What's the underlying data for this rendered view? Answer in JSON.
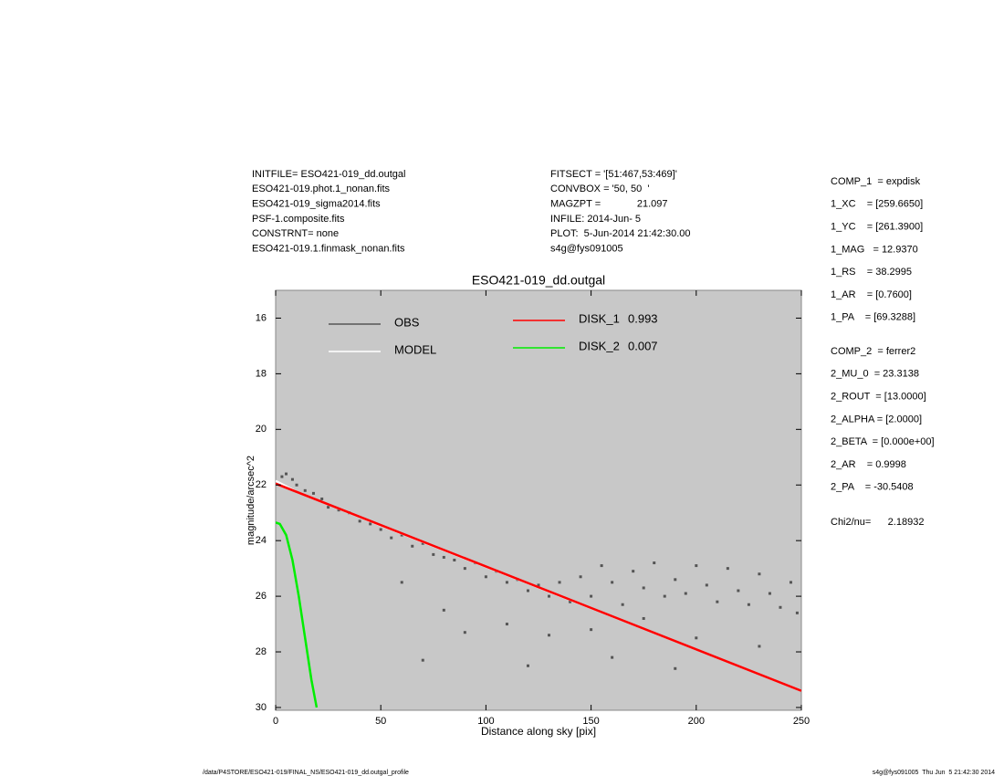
{
  "header": {
    "left": [
      "INITFILE= ESO421-019_dd.outgal",
      "ESO421-019.phot.1_nonan.fits",
      "ESO421-019_sigma2014.fits",
      "PSF-1.composite.fits",
      "CONSTRNT= none",
      "ESO421-019.1.finmask_nonan.fits"
    ],
    "middle": [
      "FITSECT = '[51:467,53:469]'",
      "CONVBOX = '50, 50  '",
      "MAGZPT =             21.097",
      "INFILE: 2014-Jun- 5",
      "PLOT:  5-Jun-2014 21:42:30.00",
      "s4g@fys091005"
    ],
    "components": [
      [
        "COMP_1  = expdisk",
        "1_XC    = [259.6650]",
        "1_YC    = [261.3900]",
        "1_MAG   = 12.9370",
        "1_RS    = 38.2995",
        "1_AR    = [0.7600]",
        "1_PA    = [69.3288]"
      ],
      [
        "COMP_2  = ferrer2",
        "2_MU_0  = 23.3138",
        "2_ROUT  = [13.0000]",
        "2_ALPHA = [2.0000]",
        "2_BETA  = [0.000e+00]",
        "2_AR    = 0.9998",
        "2_PA    = -30.5408"
      ]
    ],
    "chi": "Chi2/nu=      2.18932"
  },
  "footer": {
    "left": "/data/P4STORE/ESO421-019/FINAL_NS/ESO421-019_dd.outgal_profile",
    "right": "s4g@fys091005  Thu Jun  5 21:42:30 2014"
  },
  "chart_data": {
    "type": "scatter",
    "title": "ESO421-019_dd.outgal",
    "x_label": "Distance along sky [pix]",
    "y_label": "magnitude/arcsec^2",
    "xlim": [
      0,
      250
    ],
    "ylim": [
      15,
      30.1
    ],
    "y_inverted": true,
    "xticks": [
      0,
      50,
      100,
      150,
      200,
      250
    ],
    "yticks": [
      16,
      18,
      20,
      22,
      24,
      26,
      28,
      30
    ],
    "background": "#c8c8c8",
    "series": [
      {
        "name": "OBS",
        "type": "scatter",
        "color": "#555555",
        "x": [
          3,
          5,
          8,
          10,
          14,
          18,
          22,
          25,
          30,
          35,
          40,
          45,
          50,
          55,
          60,
          65,
          70,
          75,
          80,
          85,
          90,
          95,
          100,
          105,
          110,
          115,
          120,
          125,
          130,
          135,
          140,
          145,
          150,
          155,
          160,
          165,
          170,
          175,
          180,
          185,
          190,
          195,
          200,
          205,
          210,
          215,
          220,
          225,
          230,
          235,
          240,
          245,
          248,
          60,
          80,
          90,
          70,
          110,
          130,
          120,
          150,
          160,
          175,
          200,
          190,
          230
        ],
        "values": [
          21.7,
          21.6,
          21.8,
          22.0,
          22.2,
          22.3,
          22.5,
          22.8,
          22.9,
          23.0,
          23.3,
          23.4,
          23.6,
          23.9,
          23.8,
          24.2,
          24.1,
          24.5,
          24.6,
          24.7,
          25.0,
          24.8,
          25.3,
          25.1,
          25.5,
          25.4,
          25.8,
          25.6,
          26.0,
          25.5,
          26.2,
          25.3,
          26.0,
          24.9,
          25.5,
          26.3,
          25.1,
          25.7,
          24.8,
          26.0,
          25.4,
          25.9,
          24.9,
          25.6,
          26.2,
          25.0,
          25.8,
          26.3,
          25.2,
          25.9,
          26.4,
          25.5,
          26.6,
          25.5,
          26.5,
          27.3,
          28.3,
          27.0,
          27.4,
          28.5,
          27.2,
          28.2,
          26.8,
          27.5,
          28.6,
          27.8
        ]
      },
      {
        "name": "MODEL",
        "type": "line",
        "color": "#ffffff",
        "x": [
          0,
          10,
          50,
          250
        ],
        "values": [
          21.85,
          22.25,
          23.45,
          29.4
        ]
      },
      {
        "name": "DISK_1",
        "fraction": 0.993,
        "type": "line",
        "color": "#ff0000",
        "x": [
          0,
          250
        ],
        "values": [
          21.95,
          29.4
        ]
      },
      {
        "name": "DISK_2",
        "fraction": 0.007,
        "type": "line",
        "color": "#00ee00",
        "x": [
          0,
          2,
          5,
          8,
          11,
          14,
          17,
          19.5
        ],
        "values": [
          23.35,
          23.4,
          23.8,
          24.7,
          26,
          27.5,
          29,
          30
        ]
      }
    ]
  }
}
